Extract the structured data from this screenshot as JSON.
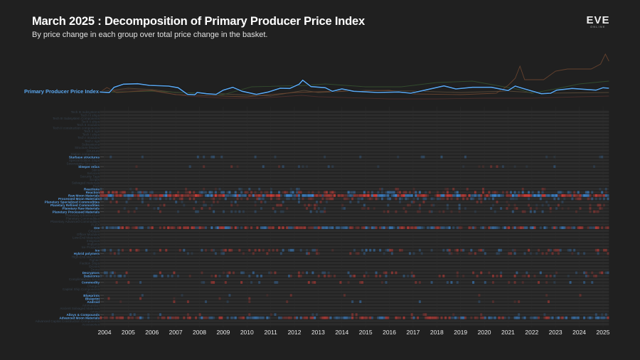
{
  "header": {
    "title": "March 2025 : Decomposition of Primary Producer Price Index",
    "subtitle": "By price change in each group over total price change in the basket.",
    "logo": "EVE ONLINE"
  },
  "colors": {
    "background": "#202020",
    "index_line": "#5aa6ee",
    "label_active": "#5aa0e6",
    "label_inactive": "#35414d",
    "increase": "#3f8fe0",
    "decrease": "#e0403a"
  },
  "chart_data": [
    {
      "type": "line",
      "title": "",
      "xlim": [
        2003.8,
        2025.25
      ],
      "series": [
        {
          "name": "Primary Producer Price Index",
          "color": "#5aa6ee",
          "points": [
            [
              2003.8,
              100.7
            ],
            [
              2004.2,
              100
            ],
            [
              2004.4,
              107.3
            ],
            [
              2004.8,
              111.7
            ],
            [
              2005.4,
              112.3
            ],
            [
              2005.9,
              110
            ],
            [
              2006.7,
              109
            ],
            [
              2007.1,
              106.7
            ],
            [
              2007.5,
              97.3
            ],
            [
              2007.8,
              96.7
            ],
            [
              2007.9,
              100
            ],
            [
              2008.3,
              98.3
            ],
            [
              2008.7,
              97.3
            ],
            [
              2009.0,
              103.3
            ],
            [
              2009.4,
              107.3
            ],
            [
              2009.8,
              101.7
            ],
            [
              2010.4,
              97.3
            ],
            [
              2010.9,
              100.7
            ],
            [
              2011.4,
              106
            ],
            [
              2011.8,
              105.7
            ],
            [
              2012.2,
              111.7
            ],
            [
              2012.35,
              117.3
            ],
            [
              2012.7,
              108.3
            ],
            [
              2013.3,
              106.7
            ],
            [
              2013.6,
              101.7
            ],
            [
              2014.0,
              105
            ],
            [
              2014.5,
              101.7
            ],
            [
              2015.5,
              100
            ],
            [
              2016.4,
              100.7
            ],
            [
              2016.9,
              99
            ],
            [
              2017.5,
              103.3
            ],
            [
              2018.3,
              109.3
            ],
            [
              2018.8,
              105
            ],
            [
              2019.5,
              107.3
            ],
            [
              2020.3,
              107.3
            ],
            [
              2021.0,
              102.7
            ],
            [
              2021.3,
              109
            ],
            [
              2021.7,
              105
            ],
            [
              2022.4,
              98.3
            ],
            [
              2022.8,
              99
            ],
            [
              2023.05,
              103.3
            ],
            [
              2023.7,
              105.7
            ],
            [
              2024.7,
              103.3
            ],
            [
              2025.0,
              106.7
            ],
            [
              2025.25,
              106
            ]
          ]
        },
        {
          "color": "#6e4630",
          "points": [
            [
              2003.8,
              100
            ],
            [
              2004.1,
              107
            ],
            [
              2004.5,
              100
            ],
            [
              2006,
              103
            ],
            [
              2007,
              97
            ],
            [
              2010,
              94
            ],
            [
              2012,
              100
            ],
            [
              2014,
              102
            ],
            [
              2016,
              103
            ],
            [
              2017,
              98
            ],
            [
              2019,
              97
            ],
            [
              2020.5,
              99
            ],
            [
              2021,
              110
            ],
            [
              2021.3,
              120
            ],
            [
              2021.5,
              137
            ],
            [
              2021.7,
              118
            ],
            [
              2022.5,
              118
            ],
            [
              2023,
              130
            ],
            [
              2023.5,
              133
            ],
            [
              2024.5,
              133
            ],
            [
              2024.9,
              140
            ],
            [
              2025.1,
              154
            ],
            [
              2025.25,
              144
            ]
          ]
        },
        {
          "color": "#34502f",
          "points": [
            [
              2003.8,
              100
            ],
            [
              2006,
              102
            ],
            [
              2009,
              97
            ],
            [
              2010.2,
              108
            ],
            [
              2012.5,
              110
            ],
            [
              2013.3,
              112
            ],
            [
              2015,
              108
            ],
            [
              2016.5,
              108
            ],
            [
              2018,
              114
            ],
            [
              2019.5,
              116
            ],
            [
              2020.5,
              110
            ],
            [
              2021.5,
              104
            ],
            [
              2022,
              99
            ],
            [
              2023,
              105
            ],
            [
              2024,
              112
            ],
            [
              2025.25,
              116
            ]
          ]
        },
        {
          "color": "#4e2f2c",
          "points": [
            [
              2003.8,
              100
            ],
            [
              2005,
              104
            ],
            [
              2006,
              102
            ],
            [
              2007.5,
              95
            ],
            [
              2009,
              92
            ],
            [
              2010.5,
              92
            ],
            [
              2012.3,
              96
            ],
            [
              2013,
              94
            ],
            [
              2016,
              91
            ],
            [
              2018,
              91
            ],
            [
              2020,
              92
            ],
            [
              2022,
              92
            ],
            [
              2024,
              94
            ],
            [
              2025.25,
              95
            ]
          ]
        },
        {
          "color": "#5a4a38",
          "points": [
            [
              2003.8,
              101
            ],
            [
              2005,
              106
            ],
            [
              2006,
              104
            ],
            [
              2007,
              100
            ],
            [
              2009,
              98
            ],
            [
              2011,
              95
            ],
            [
              2012.4,
              103
            ],
            [
              2013,
              100
            ],
            [
              2015,
              103
            ],
            [
              2017,
              102
            ],
            [
              2019,
              100
            ],
            [
              2021,
              102
            ],
            [
              2022.5,
              99
            ],
            [
              2025.25,
              100
            ]
          ]
        }
      ]
    },
    {
      "type": "heatmap",
      "x_ticks": [
        "2004",
        "2005",
        "2006",
        "2007",
        "2008",
        "2009",
        "2010",
        "2011",
        "2012",
        "2013",
        "2014",
        "2015",
        "2016",
        "2017",
        "2018",
        "2019",
        "2020",
        "2021",
        "2022",
        "2023",
        "2024",
        "2025"
      ],
      "rows": [
        {
          "label": "Tech III subsystems",
          "active": false,
          "activity": 0
        },
        {
          "label": "Tech III ships",
          "active": false,
          "activity": 0
        },
        {
          "label": "Tech III Subsystem Components",
          "active": false,
          "activity": 0
        },
        {
          "label": "Tech II ships",
          "active": false,
          "activity": 0
        },
        {
          "label": "Tech II modules",
          "active": false,
          "activity": 0
        },
        {
          "label": "Tech II construction components",
          "active": false,
          "activity": 0
        },
        {
          "label": "Tech II rigs",
          "active": false,
          "activity": 0
        },
        {
          "label": "Tech I ships",
          "active": false,
          "activity": 0
        },
        {
          "label": "Tech I modules",
          "active": false,
          "activity": 0
        },
        {
          "label": "Tech I rigs",
          "active": false,
          "activity": 0
        },
        {
          "label": "Subsystems",
          "active": false,
          "activity": 0
        },
        {
          "label": "Structure Module",
          "active": false,
          "activity": 0
        },
        {
          "label": "Structure",
          "active": false,
          "activity": 0
        },
        {
          "label": "Station components",
          "active": false,
          "activity": 0
        },
        {
          "label": "Starbase structures",
          "active": true,
          "activity": 0.08,
          "intensity": 0.35
        },
        {
          "label": "Special Edition Ships",
          "active": false,
          "activity": 0
        },
        {
          "label": "Sovereignty Structures",
          "active": false,
          "activity": 0
        },
        {
          "label": "Sleeper relics",
          "active": true,
          "activity": 0.1,
          "intensity": 0.35
        },
        {
          "label": "Skins",
          "active": false,
          "activity": 0
        },
        {
          "label": "Services",
          "active": false,
          "activity": 0
        },
        {
          "label": "Security Tags",
          "active": false,
          "activity": 0
        },
        {
          "label": "Scripts",
          "active": false,
          "activity": 0
        },
        {
          "label": "Salvaged materials",
          "active": false,
          "activity": 0
        },
        {
          "label": "Rigs",
          "active": false,
          "activity": 0
        },
        {
          "label": "Reactions",
          "active": true,
          "activity": 0.15,
          "intensity": 0.4
        },
        {
          "label": "Reaction",
          "active": true,
          "activity": 0.45,
          "intensity": 0.6
        },
        {
          "label": "Raw Moon Materials",
          "active": true,
          "activity": 0.95,
          "intensity": 0.9
        },
        {
          "label": "Processed Moon Materials",
          "active": true,
          "activity": 0.4,
          "intensity": 0.45
        },
        {
          "label": "Planetary Specialized Commodities",
          "active": true,
          "activity": 0.12,
          "intensity": 0.4
        },
        {
          "label": "Planetary Refined Commodities",
          "active": true,
          "activity": 0.2,
          "intensity": 0.4
        },
        {
          "label": "Planetary Raw Materials",
          "active": true,
          "activity": 0.15,
          "intensity": 0.35
        },
        {
          "label": "Planetary Processed Materials",
          "active": true,
          "activity": 0.2,
          "intensity": 0.4
        },
        {
          "label": "Planetary Infrastructure",
          "active": false,
          "activity": 0
        },
        {
          "label": "Planetary Commodities",
          "active": false,
          "activity": 0
        },
        {
          "label": "Planetary Advanced Commodities",
          "active": false,
          "activity": 0
        },
        {
          "label": "PLEX",
          "active": false,
          "activity": 0
        },
        {
          "label": "Ore",
          "active": true,
          "activity": 0.75,
          "intensity": 0.7
        },
        {
          "label": "Orbitals",
          "active": false,
          "activity": 0
        },
        {
          "label": "Officer Modules",
          "active": false,
          "activity": 0
        },
        {
          "label": "Low-End Materials",
          "active": false,
          "activity": 0
        },
        {
          "label": "Insignias",
          "active": false,
          "activity": 0
        },
        {
          "label": "Implants",
          "active": false,
          "activity": 0
        },
        {
          "label": "Ice Products",
          "active": false,
          "activity": 0
        },
        {
          "label": "Ice",
          "active": true,
          "activity": 0.35,
          "intensity": 0.55
        },
        {
          "label": "Hybrid polymers",
          "active": true,
          "activity": 0.2,
          "intensity": 0.4
        },
        {
          "label": "High-End Materials",
          "active": false,
          "activity": 0
        },
        {
          "label": "Fighter",
          "active": false,
          "activity": 0
        },
        {
          "label": "Faction Ships",
          "active": false,
          "activity": 0
        },
        {
          "label": "Drones",
          "active": false,
          "activity": 0
        },
        {
          "label": "Drone",
          "active": false,
          "activity": 0
        },
        {
          "label": "Decryptors",
          "active": true,
          "activity": 0.2,
          "intensity": 0.5
        },
        {
          "label": "Datacores",
          "active": true,
          "activity": 0.25,
          "intensity": 0.5
        },
        {
          "label": "Complimentary items",
          "active": false,
          "activity": 0
        },
        {
          "label": "Commodity",
          "active": true,
          "activity": 0.2,
          "intensity": 0.55
        },
        {
          "label": "Charges",
          "active": false,
          "activity": 0
        },
        {
          "label": "Capital Ship Components",
          "active": false,
          "activity": 0
        },
        {
          "label": "Boosters",
          "active": false,
          "activity": 0
        },
        {
          "label": "Blueprints",
          "active": true,
          "activity": 0.03,
          "intensity": 0.4
        },
        {
          "label": "Blueprint",
          "active": true,
          "activity": 0.03,
          "intensity": 0.4
        },
        {
          "label": "Android",
          "active": true,
          "activity": 0.04,
          "intensity": 0.5
        },
        {
          "label": "Ammunition",
          "active": false,
          "activity": 0
        },
        {
          "label": "Ancient Salvaged Materials",
          "active": false,
          "activity": 0
        },
        {
          "label": "Ammo",
          "active": false,
          "activity": 0
        },
        {
          "label": "Alloys & Compounds",
          "active": true,
          "activity": 0.12,
          "intensity": 0.4
        },
        {
          "label": "Advanced Moon Materials",
          "active": true,
          "activity": 0.7,
          "intensity": 0.65
        },
        {
          "label": "Advanced Capital Construction Components",
          "active": false,
          "activity": 0
        },
        {
          "label": "Accessories",
          "active": false,
          "activity": 0
        }
      ]
    }
  ]
}
